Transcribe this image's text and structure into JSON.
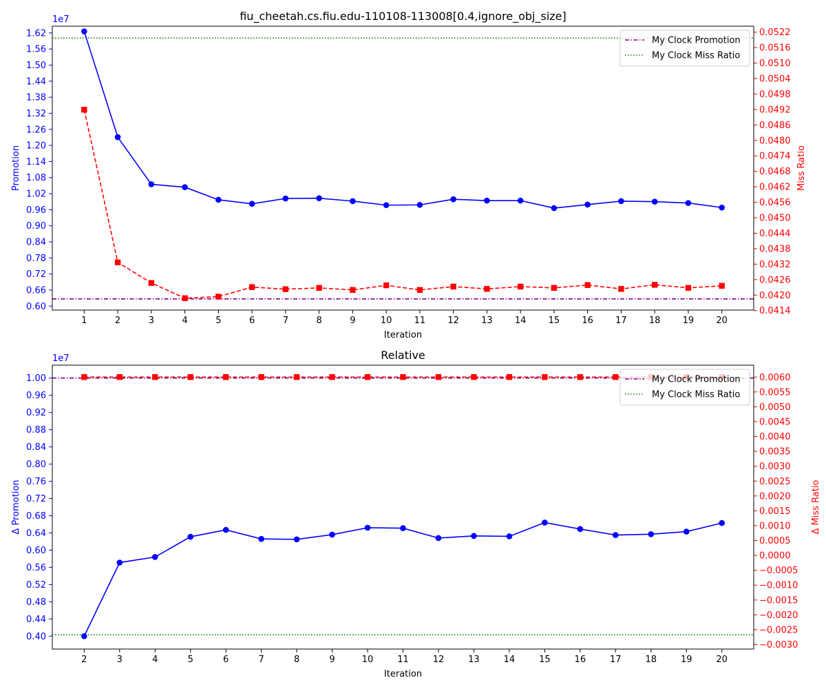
{
  "chart_data": [
    {
      "type": "line",
      "title": "fiu_cheetah.cs.fiu.edu-110108-113008[0.4,ignore_obj_size]",
      "xlabel": "Iteration",
      "ylabel_left": "Promotion",
      "ylabel_right": "Miss Ratio",
      "left_exponent": "1e7",
      "left_color": "#0000ff",
      "right_color": "#ff0000",
      "x_ticks": [
        "1",
        "2",
        "3",
        "4",
        "5",
        "6",
        "7",
        "8",
        "9",
        "10",
        "11",
        "12",
        "13",
        "14",
        "15",
        "16",
        "17",
        "18",
        "19",
        "20"
      ],
      "y_left_ticks": [
        "0.60",
        "0.66",
        "0.72",
        "0.78",
        "0.84",
        "0.90",
        "0.96",
        "1.02",
        "1.08",
        "1.14",
        "1.20",
        "1.26",
        "1.32",
        "1.38",
        "1.44",
        "1.50",
        "1.56",
        "1.62"
      ],
      "y_right_ticks": [
        "0.0414",
        "0.0420",
        "0.0426",
        "0.0432",
        "0.0438",
        "0.0444",
        "0.0450",
        "0.0456",
        "0.0462",
        "0.0468",
        "0.0474",
        "0.0480",
        "0.0486",
        "0.0492",
        "0.0498",
        "0.0504",
        "0.0510",
        "0.0516",
        "0.0522"
      ],
      "xlim": [
        0.05,
        20.95
      ],
      "ylim_left": [
        0.5853,
        1.6453
      ],
      "ylim_right": [
        0.04142,
        0.05243
      ],
      "legend_position": "upper right",
      "legend": [
        {
          "label": "My Clock Promotion",
          "color": "#800080",
          "style": "dashdot"
        },
        {
          "label": "My Clock Miss Ratio",
          "color": "#008000",
          "style": "dotted"
        }
      ],
      "reference_lines": {
        "promotion": 0.627,
        "miss_ratio": 0.05197
      },
      "series": [
        {
          "name": "Promotion",
          "axis": "left",
          "color": "#0000ff",
          "marker": "circle",
          "x": [
            1,
            2,
            3,
            4,
            5,
            6,
            7,
            8,
            9,
            10,
            11,
            12,
            13,
            14,
            15,
            16,
            17,
            18,
            19,
            20
          ],
          "values": [
            1.626,
            1.231,
            1.055,
            1.044,
            0.997,
            0.982,
            1.002,
            1.003,
            0.992,
            0.977,
            0.978,
            0.999,
            0.994,
            0.994,
            0.966,
            0.979,
            0.992,
            0.99,
            0.985,
            0.968
          ]
        },
        {
          "name": "Miss Ratio",
          "axis": "right",
          "color": "#ff0000",
          "marker": "square",
          "x": [
            1,
            2,
            3,
            4,
            5,
            6,
            7,
            8,
            9,
            10,
            11,
            12,
            13,
            14,
            15,
            16,
            17,
            18,
            19,
            20
          ],
          "values": [
            0.04919,
            0.04327,
            0.04247,
            0.04188,
            0.04194,
            0.04231,
            0.04223,
            0.04228,
            0.0422,
            0.04238,
            0.0422,
            0.04233,
            0.04224,
            0.04233,
            0.04228,
            0.04239,
            0.04224,
            0.0424,
            0.04228,
            0.04236
          ]
        }
      ]
    },
    {
      "type": "line",
      "title": "Relative",
      "xlabel": "Iteration",
      "ylabel_left": "Δ Promotion",
      "ylabel_right": "Δ Miss Ratio",
      "left_exponent": "1e7",
      "left_color": "#0000ff",
      "right_color": "#ff0000",
      "x_ticks": [
        "2",
        "3",
        "4",
        "5",
        "6",
        "7",
        "8",
        "9",
        "10",
        "11",
        "12",
        "13",
        "14",
        "15",
        "16",
        "17",
        "18",
        "19",
        "20"
      ],
      "y_left_ticks": [
        "0.40",
        "0.44",
        "0.48",
        "0.52",
        "0.56",
        "0.60",
        "0.64",
        "0.68",
        "0.72",
        "0.76",
        "0.80",
        "0.84",
        "0.88",
        "0.92",
        "0.96",
        "1.00"
      ],
      "y_right_ticks": [
        "−0.0030",
        "−0.0025",
        "−0.0020",
        "−0.0015",
        "−0.0010",
        "−0.0005",
        "0.0000",
        "0.0005",
        "0.0010",
        "0.0015",
        "0.0020",
        "0.0025",
        "0.0030",
        "0.0035",
        "0.0040",
        "0.0045",
        "0.0050",
        "0.0055",
        "0.0060"
      ],
      "xlim": [
        1.1,
        20.9
      ],
      "ylim_left": [
        0.37,
        1.03
      ],
      "ylim_right": [
        -0.00315,
        0.0064
      ],
      "legend_position": "upper right",
      "legend": [
        {
          "label": "My Clock Promotion",
          "color": "#800080",
          "style": "dashdot"
        },
        {
          "label": "My Clock Miss Ratio",
          "color": "#008000",
          "style": "dotted"
        }
      ],
      "reference_lines": {
        "promotion": 1.0,
        "miss_ratio": -0.00267
      },
      "series": [
        {
          "name": "Δ Promotion",
          "axis": "left",
          "color": "#0000ff",
          "marker": "circle",
          "x": [
            2,
            3,
            4,
            5,
            6,
            7,
            8,
            9,
            10,
            11,
            12,
            13,
            14,
            15,
            16,
            17,
            18,
            19,
            20
          ],
          "values": [
            0.4,
            0.571,
            0.584,
            0.631,
            0.647,
            0.626,
            0.625,
            0.636,
            0.652,
            0.651,
            0.628,
            0.633,
            0.632,
            0.664,
            0.649,
            0.635,
            0.637,
            0.643,
            0.663
          ]
        },
        {
          "name": "Δ Miss Ratio",
          "axis": "right",
          "color": "#ff0000",
          "marker": "square",
          "x": [
            2,
            3,
            4,
            5,
            6,
            7,
            8,
            9,
            10,
            11,
            12,
            13,
            14,
            15,
            16,
            17,
            18,
            19,
            20
          ],
          "values": [
            0.006,
            0.006,
            0.006,
            0.006,
            0.006,
            0.006,
            0.006,
            0.006,
            0.006,
            0.006,
            0.006,
            0.006,
            0.006,
            0.006,
            0.006,
            0.006,
            0.006,
            0.006,
            0.006
          ]
        }
      ]
    }
  ]
}
